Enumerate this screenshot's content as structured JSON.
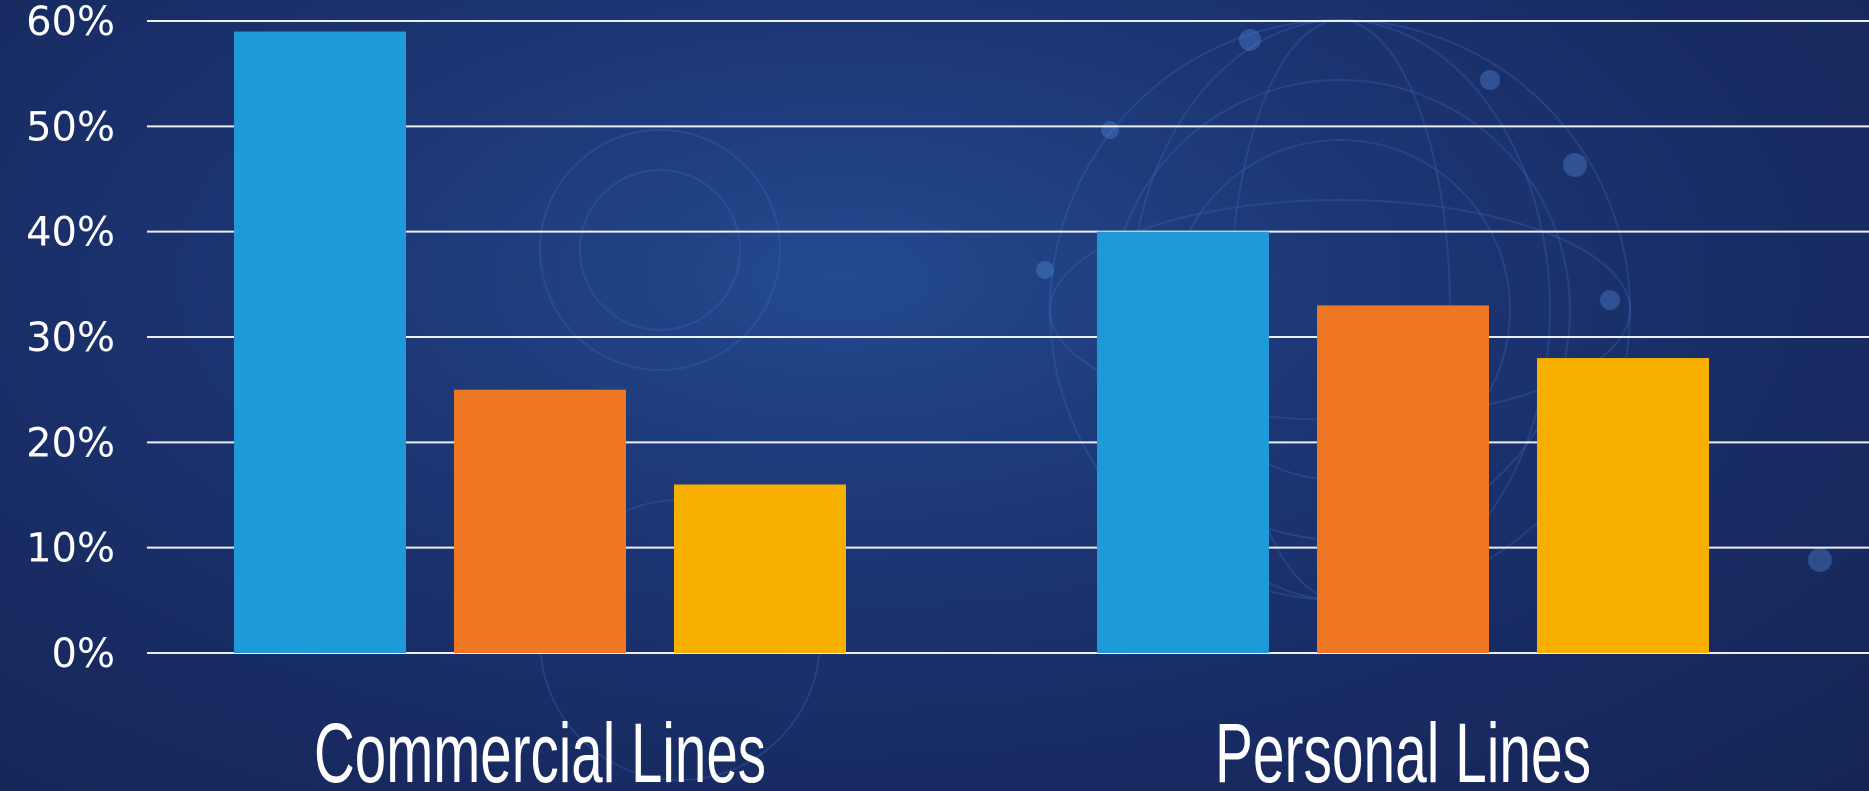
{
  "chart_data": {
    "type": "bar",
    "categories": [
      "Commercial Lines",
      "Personal Lines"
    ],
    "series": [
      {
        "color": "#1e9ad9",
        "values": [
          59,
          40
        ]
      },
      {
        "color": "#ef7622",
        "values": [
          25,
          33
        ]
      },
      {
        "color": "#f7b000",
        "values": [
          16,
          28
        ]
      }
    ],
    "yticks": [
      "0%",
      "10%",
      "20%",
      "30%",
      "40%",
      "50%",
      "60%"
    ],
    "ylim": [
      0,
      60
    ],
    "grid": true,
    "legend": "none",
    "title": "",
    "xlabel": "",
    "ylabel": ""
  },
  "colors": {
    "background": "#1b2d64",
    "gridline": "#ffffff",
    "text": "#ffffff"
  }
}
